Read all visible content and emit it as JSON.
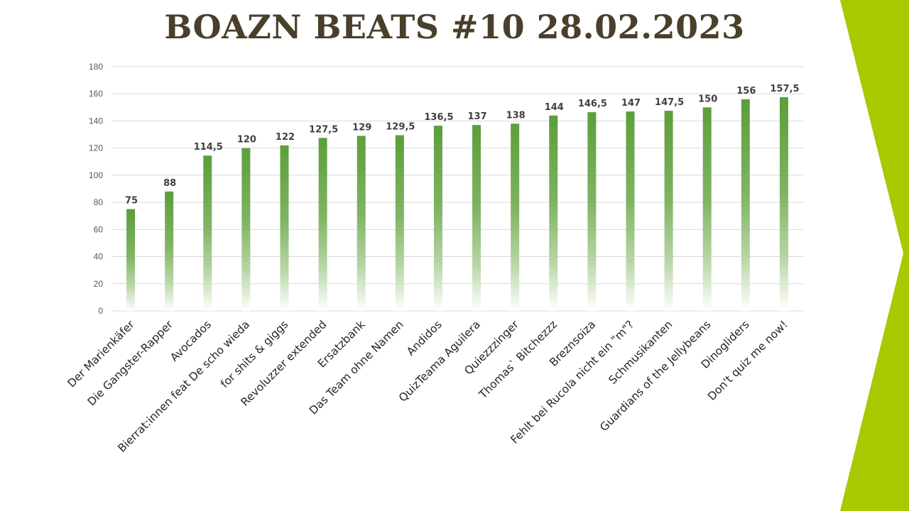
{
  "slide": {
    "title": "BOAZN BEATS #10 28.02.2023",
    "accent_color": "#a9c800"
  },
  "chart_data": {
    "type": "bar",
    "title": "",
    "xlabel": "",
    "ylabel": "",
    "ylim": [
      0,
      180
    ],
    "yticks": [
      0,
      20,
      40,
      60,
      80,
      100,
      120,
      140,
      160,
      180
    ],
    "grid": true,
    "legend": "none",
    "bar_color": "#5b9e3a",
    "bar_fill_style": "gradient-fade-to-white-at-base",
    "categories": [
      "Der Marienkäfer",
      "Die Gangster-Rapper",
      "Avocados",
      "Bierrat:innen feat De scho wieda",
      "for shits & giggs",
      "Revoluzzer extended",
      "Ersatzbank",
      "Das Team ohne Namen",
      "Andidos",
      "QuizTeama Aguilera",
      "Quiezzzinger",
      "Thomas` Bitchezzz",
      "Breznsoiza",
      "Fehlt bei Rucola nicht ein \"m\"?",
      "Schmusikanten",
      "Guardians of the Jellybeans",
      "Dinogliders",
      "Don't quiz me now!"
    ],
    "values": [
      75,
      88,
      114.5,
      120,
      122,
      127.5,
      129,
      129.5,
      136.5,
      137,
      138,
      144,
      146.5,
      147,
      147.5,
      150,
      156,
      157.5
    ],
    "value_labels": [
      "75",
      "88",
      "114,5",
      "120",
      "122",
      "127,5",
      "129",
      "129,5",
      "136,5",
      "137",
      "138",
      "144",
      "146,5",
      "147",
      "147,5",
      "150",
      "156",
      "157,5"
    ]
  }
}
